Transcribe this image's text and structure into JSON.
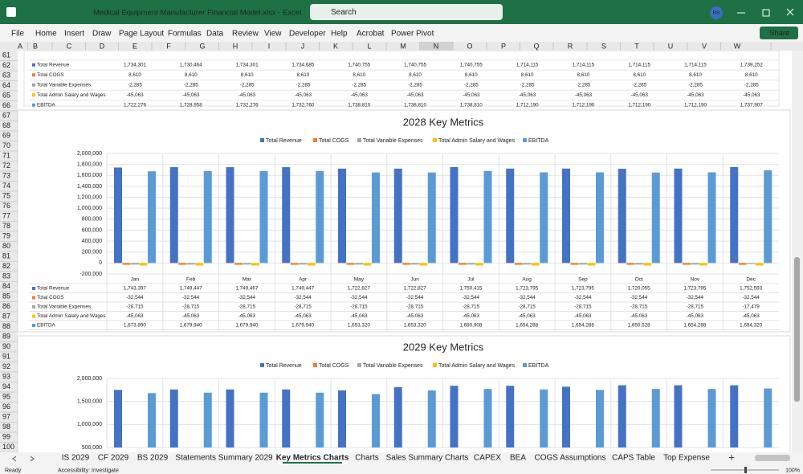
{
  "title_bar": {
    "title": "Medical Equipment Manufacturer Financial Model.xlsx  -  Excel",
    "search": "Search",
    "user": "RS"
  },
  "menu": [
    "File",
    "Home",
    "Insert",
    "Draw",
    "Page Layout",
    "Formulas",
    "Data",
    "Review",
    "View",
    "Developer",
    "Help",
    "Acrobat",
    "Power Pivot"
  ],
  "share": "Share",
  "columns": [
    "A",
    "B",
    "C",
    "D",
    "E",
    "F",
    "G",
    "H",
    "I",
    "J",
    "K",
    "L",
    "M",
    "N",
    "O",
    "P",
    "Q",
    "R",
    "S",
    "T",
    "U",
    "V",
    "W"
  ],
  "rows": [
    61,
    62,
    63,
    64,
    65,
    66,
    67,
    68,
    69,
    70,
    71,
    72,
    73,
    74,
    75,
    76,
    77,
    78,
    79,
    80,
    81,
    82,
    83,
    84,
    85,
    86,
    87,
    88,
    89,
    90,
    91,
    92,
    93,
    94,
    95,
    96,
    97,
    98,
    99,
    100
  ],
  "table_top": {
    "rows": [
      {
        "label": "Total Revenue",
        "values": [
          "1,734,301",
          "1,730,464",
          "1,734,301",
          "1,734,685",
          "1,740,755",
          "1,740,755",
          "1,740,755",
          "1,714,115",
          "1,714,115",
          "1,714,115",
          "1,714,115",
          "1,739,252"
        ]
      },
      {
        "label": "Total COGS",
        "values": [
          "8,610",
          "8,610",
          "8,610",
          "8,610",
          "8,610",
          "8,610",
          "8,610",
          "8,610",
          "8,610",
          "8,610",
          "8,610",
          "8,610"
        ]
      },
      {
        "label": "Total Variable Expenses",
        "values": [
          "-2,285",
          "-2,285",
          "-2,285",
          "-2,285",
          "-2,285",
          "-2,285",
          "-2,285",
          "-2,285",
          "-2,285",
          "-2,285",
          "-2,285",
          "-2,285"
        ]
      },
      {
        "label": "Total Admin Salary and Wages",
        "values": [
          "-45,063",
          "-45,063",
          "-45,063",
          "-45,063",
          "-45,063",
          "-45,063",
          "-45,063",
          "-45,063",
          "-45,063",
          "-45,063",
          "-45,063",
          "-45,063"
        ]
      },
      {
        "label": "EBITDA",
        "values": [
          "1,722,276",
          "1,728,958",
          "1,732,276",
          "1,732,760",
          "1,738,810",
          "1,738,810",
          "1,738,810",
          "1,712,190",
          "1,712,190",
          "1,712,190",
          "1,712,190",
          "1,737,907"
        ]
      }
    ]
  },
  "chart_data": [
    {
      "type": "bar",
      "title": "2028 Key Metrics",
      "categories": [
        "Jan",
        "Feb",
        "Mar",
        "Apr",
        "May",
        "Jun",
        "Jul",
        "Aug",
        "Sep",
        "Oct",
        "Nov",
        "Dec"
      ],
      "ylim": [
        -200000,
        2000000
      ],
      "yticks": [
        {
          "value": 2000000,
          "label": "2,000,000"
        },
        {
          "value": 1800000,
          "label": "1,800,000"
        },
        {
          "value": 1600000,
          "label": "1,600,000"
        },
        {
          "value": 1400000,
          "label": "1,400,000"
        },
        {
          "value": 1200000,
          "label": "1,200,000"
        },
        {
          "value": 1000000,
          "label": "1,000,000"
        },
        {
          "value": 800000,
          "label": "800,000"
        },
        {
          "value": 600000,
          "label": "600,000"
        },
        {
          "value": 400000,
          "label": "400,000"
        },
        {
          "value": 200000,
          "label": "200,000"
        },
        0,
        {
          "value": -200000,
          "label": "-200,000"
        }
      ],
      "grid": true,
      "data_table": true,
      "series": [
        {
          "name": "Total Revenue",
          "color": "#4472c4",
          "values": [
            1743397,
            1749447,
            1749467,
            1749447,
            1722827,
            1722827,
            1750415,
            1723795,
            1723795,
            1720055,
            1723795,
            1752593
          ],
          "value_labels": [
            "1,743,397",
            "1,749,447",
            "1,749,467",
            "1,749,447",
            "1,722,827",
            "1,722,827",
            "1,750,415",
            "1,723,795",
            "1,723,795",
            "1,720,055",
            "1,723,795",
            "1,752,593"
          ]
        },
        {
          "name": "Total COGS",
          "color": "#ed7d31",
          "values": [
            -32544,
            -32544,
            -32544,
            -32544,
            -32544,
            -32544,
            -32544,
            -32544,
            -32544,
            -32544,
            -32544,
            -32544
          ],
          "value_labels": [
            "-32,544",
            "-32,544",
            "-32,544",
            "-32,544",
            "-32,544",
            "-32,544",
            "-32,544",
            "-32,544",
            "-32,544",
            "-32,544",
            "-32,544",
            "-32,544"
          ]
        },
        {
          "name": "Total Variable Expenses",
          "color": "#a5a5a5",
          "values": [
            -28715,
            -28715,
            -28715,
            -28715,
            -28715,
            -28715,
            -28715,
            -28715,
            -28715,
            -28715,
            -28715,
            -17479
          ],
          "value_labels": [
            "-28,715",
            "-28,715",
            "-28,715",
            "-28,715",
            "-28,715",
            "-28,715",
            "-28,715",
            "-28,715",
            "-28,715",
            "-28,715",
            "-28,715",
            "-17,479"
          ]
        },
        {
          "name": "Total Admin Salary and Wages",
          "color": "#ffc000",
          "values": [
            -45063,
            -45063,
            -45063,
            -45063,
            -45063,
            -45063,
            -45063,
            -45063,
            -45063,
            -45063,
            -45063,
            -45063
          ],
          "value_labels": [
            "-45,063",
            "-45,063",
            "-45,063",
            "-45,063",
            "-45,063",
            "-45,063",
            "-45,063",
            "-45,063",
            "-45,063",
            "-45,063",
            "-45,063",
            "-45,063"
          ]
        },
        {
          "name": "EBITDA",
          "color": "#5b9bd5",
          "values": [
            1673890,
            1679940,
            1679940,
            1679940,
            1653320,
            1653320,
            1680908,
            1654288,
            1654288,
            1650528,
            1654288,
            1694320
          ],
          "value_labels": [
            "1,673,890",
            "1,679,940",
            "1,679,940",
            "1,679,940",
            "1,653,320",
            "1,653,320",
            "1,680,908",
            "1,654,288",
            "1,654,288",
            "1,650,528",
            "1,654,288",
            "1,694,320"
          ]
        }
      ]
    },
    {
      "type": "bar",
      "title": "2029 Key Metrics",
      "categories": [
        "Jan",
        "Feb",
        "Mar",
        "Apr",
        "May",
        "Jun",
        "Jul",
        "Aug",
        "Sep",
        "Oct",
        "Nov",
        "Dec"
      ],
      "ylim": [
        500000,
        2000000
      ],
      "yticks": [
        {
          "value": 2000000,
          "label": "2,000,000"
        },
        {
          "value": 1500000,
          "label": "1,500,000"
        },
        {
          "value": 1000000,
          "label": "1,000,000"
        },
        {
          "value": 500000,
          "label": "500,000"
        }
      ],
      "grid": true,
      "data_table": false,
      "series": [
        {
          "name": "Total Revenue",
          "color": "#4472c4",
          "values": [
            1750000,
            1760000,
            1760000,
            1760000,
            1740000,
            1810000,
            1840000,
            1840000,
            1820000,
            1850000,
            1850000,
            1850000
          ]
        },
        {
          "name": "Total COGS",
          "color": "#ed7d31"
        },
        {
          "name": "Total Variable Expenses",
          "color": "#a5a5a5"
        },
        {
          "name": "Total Admin Salary and Wages",
          "color": "#ffc000"
        },
        {
          "name": "EBITDA",
          "color": "#5b9bd5",
          "values": [
            1680000,
            1690000,
            1690000,
            1690000,
            1660000,
            1740000,
            1770000,
            1760000,
            1750000,
            1770000,
            1770000,
            1780000
          ]
        }
      ]
    }
  ],
  "sheet_tabs": [
    "IS 2029",
    "CF 2029",
    "BS 2029",
    "Statements Summary 2029",
    "Key Metrics Charts",
    "Charts",
    "Sales Summary Charts",
    "CAPEX",
    "BEA",
    "COGS Assumptions",
    "CAPS Table",
    "Top Expense"
  ],
  "active_tab": 4,
  "status": {
    "ready": "Ready",
    "accessibility": "Accessibility: Investigate",
    "zoom": "100%"
  }
}
